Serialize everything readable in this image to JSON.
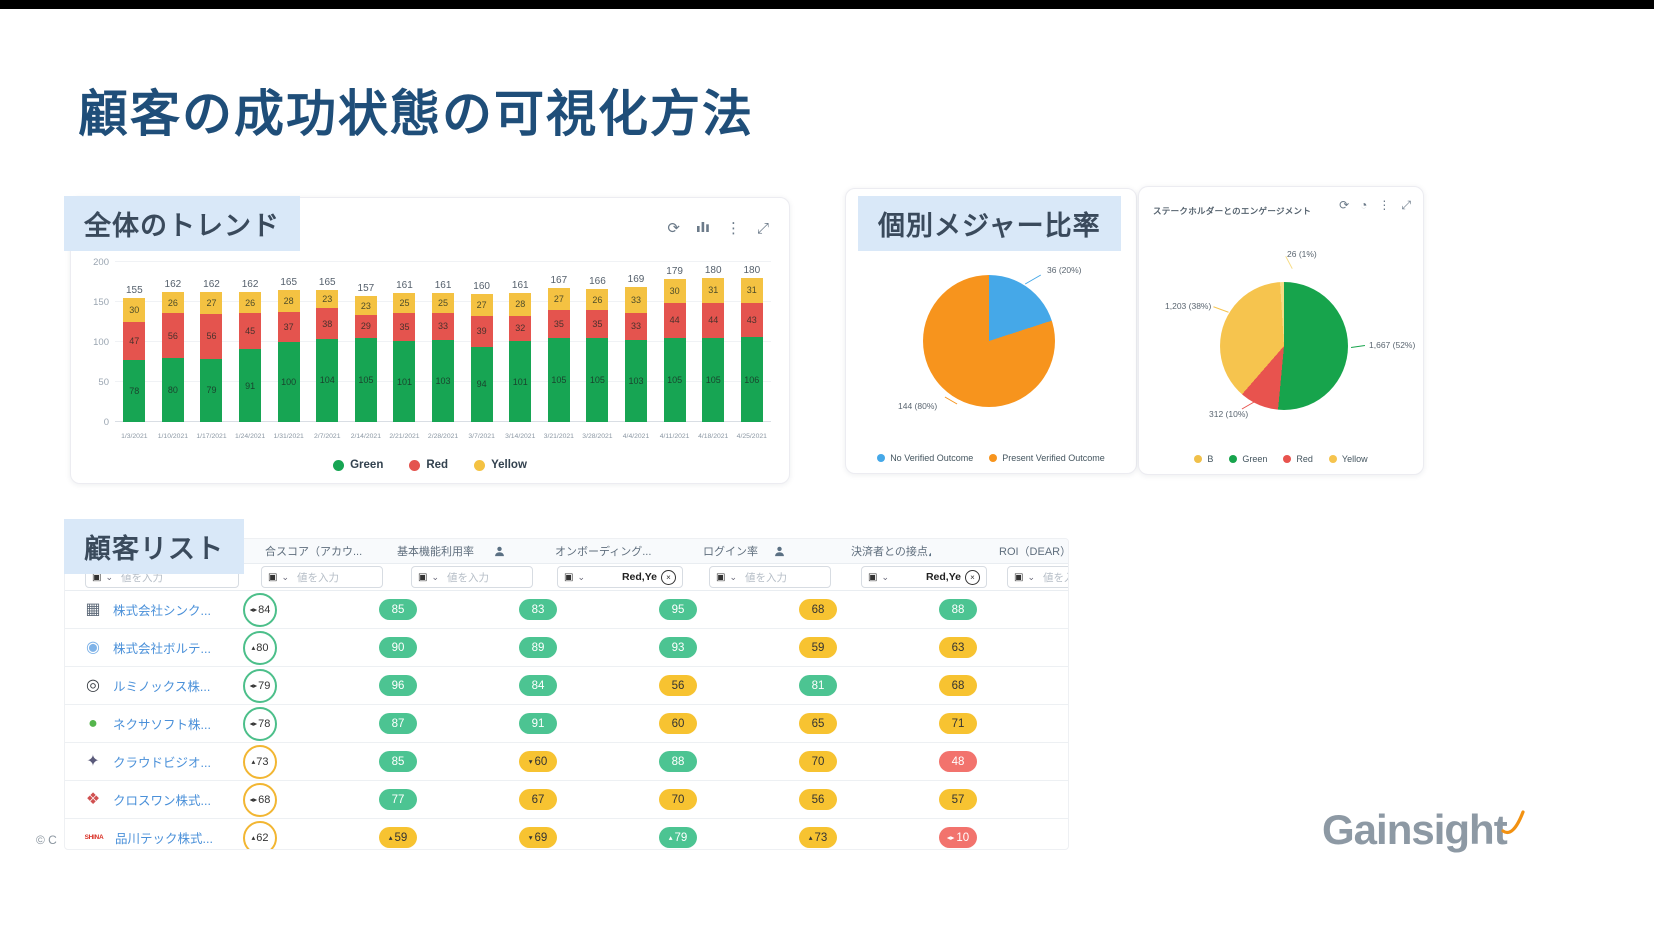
{
  "slide": {
    "title": "顧客の成功状態の可視化方法",
    "copyright": "© C",
    "logo_text": "Gainsight"
  },
  "sections": {
    "trend_label": "全体のトレンド",
    "measure_label": "個別メジャー比率",
    "table_label": "顧客リスト"
  },
  "trend_toolbar": [
    "refresh-icon",
    "chart-type-icon",
    "kebab-menu-icon",
    "expand-icon"
  ],
  "pie2_toolbar": [
    "refresh-icon",
    "time-icon",
    "kebab-menu-icon",
    "expand-icon"
  ],
  "chart_data": [
    {
      "type": "bar",
      "title": "全体のトレンド",
      "stacked": true,
      "categories": [
        "1/3/2021",
        "1/10/2021",
        "1/17/2021",
        "1/24/2021",
        "1/31/2021",
        "2/7/2021",
        "2/14/2021",
        "2/21/2021",
        "2/28/2021",
        "3/7/2021",
        "3/14/2021",
        "3/21/2021",
        "3/28/2021",
        "4/4/2021",
        "4/11/2021",
        "4/18/2021",
        "4/25/2021"
      ],
      "series": [
        {
          "name": "Green",
          "color": "#17a553",
          "values": [
            78,
            80,
            79,
            91,
            100,
            104,
            105,
            101,
            103,
            94,
            101,
            105,
            105,
            103,
            105,
            105,
            106
          ]
        },
        {
          "name": "Red",
          "color": "#e4544e",
          "values": [
            47,
            56,
            56,
            45,
            37,
            38,
            29,
            35,
            33,
            39,
            32,
            35,
            35,
            33,
            44,
            44,
            43
          ]
        },
        {
          "name": "Yellow",
          "color": "#f4c242",
          "values": [
            30,
            26,
            27,
            26,
            28,
            23,
            23,
            25,
            25,
            27,
            28,
            27,
            26,
            33,
            30,
            31,
            31
          ]
        }
      ],
      "totals": [
        155,
        162,
        162,
        162,
        165,
        165,
        157,
        161,
        161,
        160,
        161,
        167,
        166,
        169,
        179,
        180,
        180
      ],
      "ylim": [
        0,
        200
      ],
      "yticks": [
        0,
        50,
        100,
        150,
        200
      ],
      "legend_position": "bottom"
    },
    {
      "type": "pie",
      "title": "",
      "slices": [
        {
          "label": "No Verified Outcome",
          "value": 36,
          "pct": 20,
          "display": "36 (20%)",
          "color": "#45a8e8"
        },
        {
          "label": "Present Verified Outcome",
          "value": 144,
          "pct": 80,
          "display": "144 (80%)",
          "color": "#f7941d"
        }
      ],
      "legend": [
        {
          "label": "No Verified Outcome",
          "color": "#45a8e8"
        },
        {
          "label": "Present Verified Outcome",
          "color": "#f7941d"
        }
      ]
    },
    {
      "type": "pie",
      "title": "ステークホルダーとのエンゲージメント",
      "slices": [
        {
          "label": "Green",
          "value": 1667,
          "pct": 52,
          "display": "1,667 (52%)",
          "color": "#17a44c"
        },
        {
          "label": "Red",
          "value": 312,
          "pct": 10,
          "display": "312 (10%)",
          "color": "#e8534e"
        },
        {
          "label": "Yellow",
          "value": 1203,
          "pct": 38,
          "display": "1,203 (38%)",
          "color": "#f6c44e"
        },
        {
          "label": "B",
          "value": 26,
          "pct": 1,
          "display": "26 (1%)",
          "color": "#f7dc85"
        }
      ],
      "legend": [
        {
          "label": "B",
          "color": "#f0c04a"
        },
        {
          "label": "Green",
          "color": "#17a44c"
        },
        {
          "label": "Red",
          "color": "#e8534e"
        },
        {
          "label": "Yellow",
          "color": "#f6c44e"
        }
      ]
    }
  ],
  "table": {
    "columns": [
      {
        "header": "",
        "person_icon": false,
        "filter_text": "値を入力",
        "filter_kind": "placeholder"
      },
      {
        "header": "合スコア（アカウ...",
        "person_icon": false,
        "filter_text": "値を入力",
        "filter_kind": "placeholder"
      },
      {
        "header": "基本機能利用率",
        "person_icon": true,
        "filter_text": "値を入力",
        "filter_kind": "placeholder"
      },
      {
        "header": "オンボーディング...",
        "person_icon": true,
        "filter_text": "Red,Ye",
        "filter_kind": "chip"
      },
      {
        "header": "ログイン率",
        "person_icon": true,
        "filter_text": "値を入力",
        "filter_kind": "placeholder"
      },
      {
        "header": "決済者との接点",
        "person_icon": true,
        "filter_text": "Red,Ye",
        "filter_kind": "chip"
      },
      {
        "header": "ROI（DEAR）",
        "person_icon": true,
        "filter_text": "値を入力",
        "filter_kind": "placeholder"
      }
    ],
    "rows": [
      {
        "name": "株式会社シンク...",
        "logo": {
          "glyph": "▦",
          "color": "#5f6b7a"
        },
        "score": {
          "value": 84,
          "trend": "flat",
          "tone": "green"
        },
        "cells": [
          {
            "value": 85,
            "tone": "green"
          },
          {
            "value": 83,
            "tone": "green"
          },
          {
            "value": 95,
            "tone": "green"
          },
          {
            "value": 68,
            "tone": "yellow"
          },
          {
            "value": 88,
            "tone": "green"
          }
        ]
      },
      {
        "name": "株式会社ボルテ...",
        "logo": {
          "glyph": "◉",
          "color": "#7fb3e8"
        },
        "score": {
          "value": 80,
          "trend": "up",
          "tone": "green"
        },
        "cells": [
          {
            "value": 90,
            "tone": "green"
          },
          {
            "value": 89,
            "tone": "green"
          },
          {
            "value": 93,
            "tone": "green"
          },
          {
            "value": 59,
            "tone": "yellow"
          },
          {
            "value": 63,
            "tone": "yellow"
          }
        ]
      },
      {
        "name": "ルミノックス株...",
        "logo": {
          "glyph": "◎",
          "color": "#3a3f45"
        },
        "score": {
          "value": 79,
          "trend": "flat",
          "tone": "green"
        },
        "cells": [
          {
            "value": 96,
            "tone": "green"
          },
          {
            "value": 84,
            "tone": "green"
          },
          {
            "value": 56,
            "tone": "yellow"
          },
          {
            "value": 81,
            "tone": "green"
          },
          {
            "value": 68,
            "tone": "yellow"
          }
        ]
      },
      {
        "name": "ネクサソフト株...",
        "logo": {
          "glyph": "●",
          "color": "#55b54c"
        },
        "score": {
          "value": 78,
          "trend": "flat",
          "tone": "green"
        },
        "cells": [
          {
            "value": 87,
            "tone": "green"
          },
          {
            "value": 91,
            "tone": "green"
          },
          {
            "value": 60,
            "tone": "yellow"
          },
          {
            "value": 65,
            "tone": "yellow"
          },
          {
            "value": 71,
            "tone": "yellow"
          }
        ]
      },
      {
        "name": "クラウドビジオ...",
        "logo": {
          "glyph": "✦",
          "color": "#5a5a7a"
        },
        "score": {
          "value": 73,
          "trend": "up",
          "tone": "yellow"
        },
        "cells": [
          {
            "value": 85,
            "tone": "green"
          },
          {
            "value": 60,
            "tone": "yellow",
            "trend": "down"
          },
          {
            "value": 88,
            "tone": "green"
          },
          {
            "value": 70,
            "tone": "yellow"
          },
          {
            "value": 48,
            "tone": "red"
          }
        ]
      },
      {
        "name": "クロスワン株式...",
        "logo": {
          "glyph": "❖",
          "color": "#d05050"
        },
        "score": {
          "value": 68,
          "trend": "flat",
          "tone": "yellow"
        },
        "cells": [
          {
            "value": 77,
            "tone": "green"
          },
          {
            "value": 67,
            "tone": "yellow"
          },
          {
            "value": 70,
            "tone": "yellow"
          },
          {
            "value": 56,
            "tone": "yellow"
          },
          {
            "value": 57,
            "tone": "yellow"
          }
        ]
      },
      {
        "name": "品川テック株式...",
        "logo": {
          "text": "SHINA",
          "color": "#d93025"
        },
        "score": {
          "value": 62,
          "trend": "up",
          "tone": "yellow"
        },
        "cells": [
          {
            "value": 59,
            "tone": "yellow",
            "trend": "up"
          },
          {
            "value": 69,
            "tone": "yellow",
            "trend": "down"
          },
          {
            "value": 79,
            "tone": "green",
            "trend": "up"
          },
          {
            "value": 73,
            "tone": "yellow",
            "trend": "up"
          },
          {
            "value": 10,
            "tone": "red",
            "trend": "flat"
          }
        ]
      }
    ]
  }
}
